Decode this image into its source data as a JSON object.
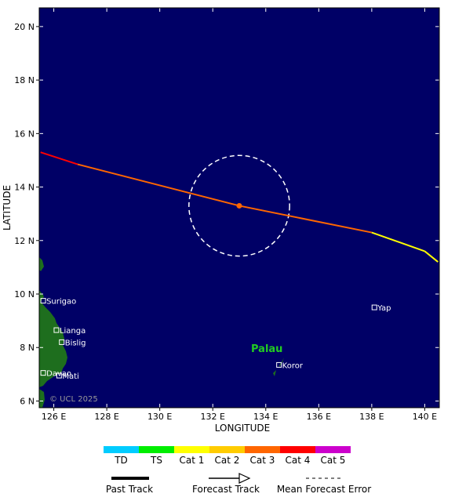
{
  "map": {
    "lat_ticks": [
      {
        "value": 6,
        "label": "6 N"
      },
      {
        "value": 8,
        "label": "8 N"
      },
      {
        "value": 10,
        "label": "10 N"
      },
      {
        "value": 12,
        "label": "12 N"
      },
      {
        "value": 14,
        "label": "14 N"
      },
      {
        "value": 16,
        "label": "16 N"
      },
      {
        "value": 18,
        "label": "18 N"
      },
      {
        "value": 20,
        "label": "20 N"
      }
    ],
    "lon_ticks": [
      {
        "value": 126,
        "label": "126 E"
      },
      {
        "value": 128,
        "label": "128 E"
      },
      {
        "value": 130,
        "label": "130 E"
      },
      {
        "value": 132,
        "label": "132 E"
      },
      {
        "value": 134,
        "label": "134 E"
      },
      {
        "value": 136,
        "label": "136 E"
      },
      {
        "value": 138,
        "label": "138 E"
      },
      {
        "value": 140,
        "label": "140 E"
      }
    ],
    "xlabel": "LONGITUDE",
    "ylabel": "LATITUDE",
    "ocean_color": "#000066",
    "land_color": "#1e6e1e",
    "copyright": "© UCL 2025",
    "region_label": "Palau",
    "places": [
      {
        "name": "Surigao",
        "lon": 125.6,
        "lat": 9.75
      },
      {
        "name": "Lianga",
        "lon": 126.1,
        "lat": 8.65
      },
      {
        "name": "Bislig",
        "lon": 126.3,
        "lat": 8.2
      },
      {
        "name": "Davao",
        "lon": 125.6,
        "lat": 7.05
      },
      {
        "name": "Mati",
        "lon": 126.2,
        "lat": 6.95
      },
      {
        "name": "Yap",
        "lon": 138.1,
        "lat": 9.5
      },
      {
        "name": "Koror",
        "lon": 134.5,
        "lat": 7.35
      }
    ]
  },
  "storm": {
    "track": [
      {
        "lon": 125.5,
        "lat": 15.3,
        "cat": "Cat 4"
      },
      {
        "lon": 126.9,
        "lat": 14.85,
        "cat": "Cat 3"
      },
      {
        "lon": 133.0,
        "lat": 13.3,
        "cat": "Cat 3"
      },
      {
        "lon": 138.0,
        "lat": 12.3,
        "cat": "Cat 1"
      },
      {
        "lon": 140.0,
        "lat": 11.6,
        "cat": "Cat 1"
      },
      {
        "lon": 140.5,
        "lat": 11.2,
        "cat": "TS"
      }
    ],
    "current_position": {
      "lon": 133.0,
      "lat": 13.3
    },
    "error_radius_deg": 1.9
  },
  "legend": {
    "categories": [
      {
        "label": "TD",
        "color": "#00ccff"
      },
      {
        "label": "TS",
        "color": "#00ee00"
      },
      {
        "label": "Cat 1",
        "color": "#ffff00"
      },
      {
        "label": "Cat 2",
        "color": "#ffcc00"
      },
      {
        "label": "Cat 3",
        "color": "#ff6600"
      },
      {
        "label": "Cat 4",
        "color": "#ff0000"
      },
      {
        "label": "Cat 5",
        "color": "#cc00cc"
      }
    ],
    "past_track": "Past Track",
    "forecast_track": "Forecast Track",
    "mean_error": "Mean Forecast Error"
  }
}
